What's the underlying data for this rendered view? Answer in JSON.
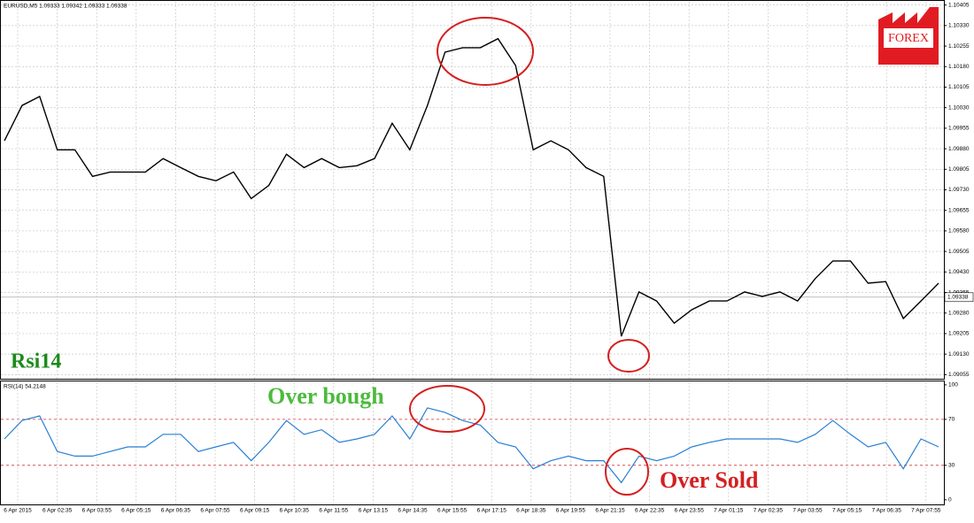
{
  "chart_data": [
    {
      "type": "line",
      "title": "EURUSD,M5  1.09333 1.09342 1.09333 1.09338",
      "color": "#000000",
      "values": [
        1.09909,
        1.10038,
        1.10071,
        1.09876,
        1.09876,
        1.09779,
        1.09795,
        1.09795,
        1.09795,
        1.09844,
        1.09811,
        1.09779,
        1.09763,
        1.09795,
        1.09698,
        1.09746,
        1.0986,
        1.09811,
        1.09844,
        1.09811,
        1.09818,
        1.09844,
        1.09973,
        1.09876,
        1.10038,
        1.10233,
        1.10249,
        1.10249,
        1.10282,
        1.10184,
        1.09876,
        1.09909,
        1.09876,
        1.09811,
        1.09779,
        1.09195,
        1.09357,
        1.09324,
        1.09243,
        1.09292,
        1.09324,
        1.09324,
        1.09357,
        1.09341,
        1.09357,
        1.09324,
        1.09406,
        1.0947,
        1.0947,
        1.09389,
        1.09395,
        1.0926,
        1.09324,
        1.09389
      ],
      "ylim": [
        1.0904,
        1.1042
      ],
      "yticks": [
        1.10405,
        {
          "value": 1.1033,
          "label": "1.10330"
        },
        1.10255,
        {
          "value": 1.1018,
          "label": "1.10180"
        },
        1.10105,
        {
          "value": 1.1003,
          "label": "1.10030"
        },
        1.09955,
        {
          "value": 1.0988,
          "label": "1.09880"
        },
        1.09805,
        {
          "value": 1.0973,
          "label": "1.09730"
        },
        1.09655,
        {
          "value": 1.0958,
          "label": "1.09580"
        },
        1.09505,
        {
          "value": 1.0943,
          "label": "1.09430"
        },
        1.09355,
        {
          "value": 1.0928,
          "label": "1.09280"
        },
        1.09205,
        {
          "value": 1.0913,
          "label": "1.09130"
        },
        1.09055
      ],
      "last_price": 1.09338,
      "grid": true,
      "annotation": "Rsi14"
    },
    {
      "type": "line",
      "title": "RSI(14) 54.2148",
      "color": "#2a7fd4",
      "values": [
        53,
        69,
        73,
        42,
        38,
        38,
        42,
        46,
        46,
        57,
        57,
        42,
        46,
        50,
        34,
        50,
        69,
        57,
        61,
        50,
        53,
        57,
        73,
        53,
        80,
        76,
        69,
        65,
        50,
        46,
        27,
        34,
        38,
        34,
        34,
        15,
        38,
        34,
        38,
        46,
        50,
        53,
        53,
        53,
        53,
        50,
        57,
        69,
        57,
        46,
        50,
        27,
        53,
        46
      ],
      "ylim": [
        -4,
        103
      ],
      "yticks": [
        100,
        70,
        30,
        0
      ],
      "levels": [
        70,
        30
      ],
      "grid": true,
      "annotations": [
        "Over bough",
        "Over Sold"
      ]
    }
  ],
  "time_labels": [
    "6 Apr 2015",
    "6 Apr 02:35",
    "6 Apr 03:55",
    "6 Apr 05:15",
    "6 Apr 06:35",
    "6 Apr 07:55",
    "6 Apr 09:15",
    "6 Apr 10:35",
    "6 Apr 11:55",
    "6 Apr 13:15",
    "6 Apr 14:35",
    "6 Apr 15:55",
    "6 Apr 17:15",
    "6 Apr 18:35",
    "6 Apr 19:55",
    "6 Apr 21:15",
    "6 Apr 22:35",
    "6 Apr 23:55",
    "7 Apr 01:15",
    "7 Apr 02:35",
    "7 Apr 03:55",
    "7 Apr 05:15",
    "7 Apr 06:35",
    "7 Apr 07:55"
  ],
  "logo": "FOREX"
}
